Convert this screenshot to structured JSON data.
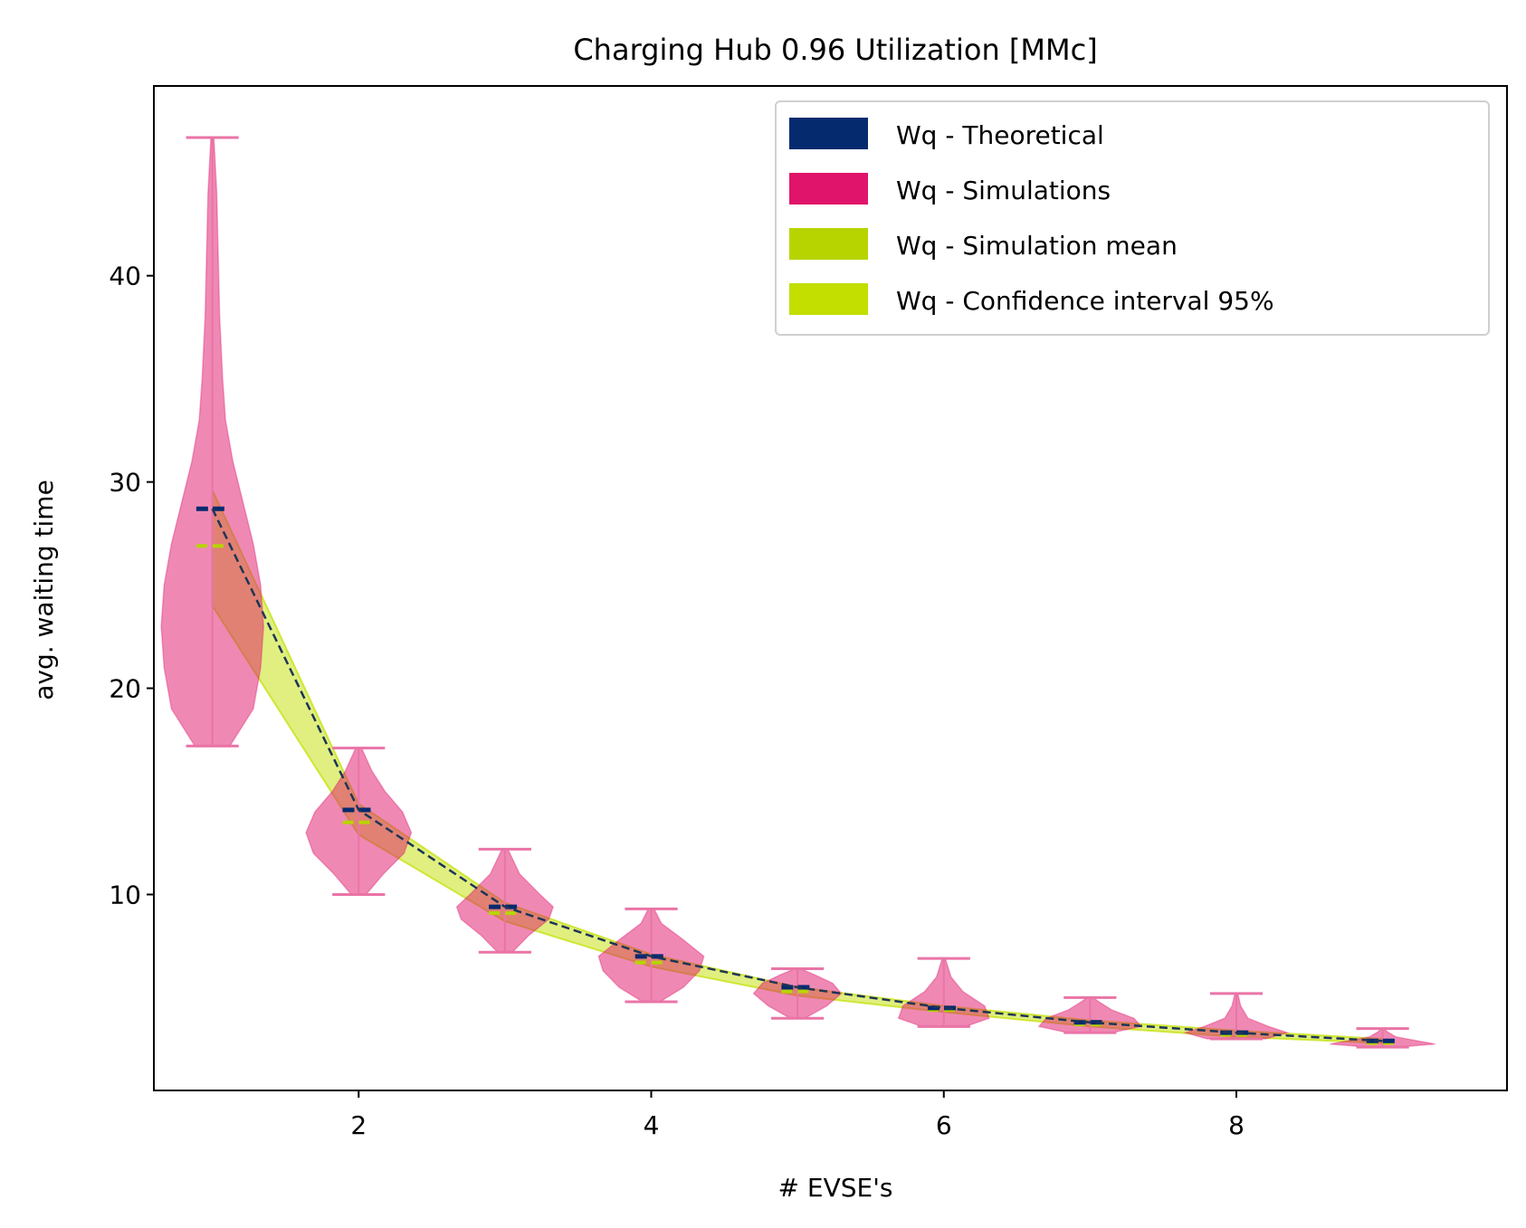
{
  "chart_data": {
    "type": "violin",
    "title": "Charging Hub 0.96 Utilization [MMc]",
    "xlabel": "# EVSE's",
    "ylabel": "avg. waiting time",
    "xlim": [
      0.6,
      9.85
    ],
    "ylim": [
      0.5,
      49.2
    ],
    "x_ticks": [
      2,
      4,
      6,
      8
    ],
    "y_ticks": [
      10,
      20,
      30,
      40
    ],
    "grid": false,
    "legend_position": "top-right",
    "legend": [
      {
        "label": "Wq - Theoretical",
        "color": "#062a6e"
      },
      {
        "label": "Wq - Simulations",
        "color": "#e0146a"
      },
      {
        "label": "Wq - Simulation mean",
        "color": "#b8d400"
      },
      {
        "label": "Wq - Confidence interval 95%",
        "color": "#c2df00"
      }
    ],
    "x": [
      1,
      2,
      3,
      4,
      5,
      6,
      7,
      8,
      9
    ],
    "theoretical": [
      28.7,
      14.1,
      9.4,
      7.0,
      5.5,
      4.5,
      3.8,
      3.3,
      2.9
    ],
    "simulation_mean": [
      26.9,
      13.5,
      9.1,
      6.7,
      5.3,
      4.4,
      3.7,
      3.2,
      2.8
    ],
    "confidence_interval_95": {
      "lower": [
        24.0,
        12.9,
        8.7,
        6.5,
        5.1,
        4.3,
        3.6,
        3.1,
        2.8
      ],
      "upper": [
        29.6,
        14.4,
        9.6,
        7.1,
        5.5,
        4.6,
        3.9,
        3.4,
        3.0
      ]
    },
    "simulations": {
      "min": [
        17.2,
        10.0,
        7.2,
        4.8,
        4.0,
        3.6,
        3.3,
        3.0,
        2.6
      ],
      "max": [
        46.7,
        17.1,
        12.2,
        9.3,
        6.4,
        6.9,
        5.0,
        5.2,
        3.5
      ],
      "profiles": [
        {
          "y": [
            17.2,
            19,
            21,
            23,
            25,
            27,
            29,
            31,
            33,
            35,
            38,
            41,
            44,
            46.7
          ],
          "width": [
            0.12,
            0.28,
            0.33,
            0.35,
            0.33,
            0.28,
            0.21,
            0.14,
            0.09,
            0.07,
            0.05,
            0.04,
            0.03,
            0.01
          ]
        },
        {
          "y": [
            10.0,
            11,
            12,
            13,
            14,
            15,
            16,
            17.1
          ],
          "width": [
            0.05,
            0.17,
            0.31,
            0.36,
            0.3,
            0.18,
            0.09,
            0.02
          ]
        },
        {
          "y": [
            7.2,
            8,
            8.8,
            9.4,
            10,
            11,
            12.2
          ],
          "width": [
            0.05,
            0.16,
            0.3,
            0.33,
            0.24,
            0.1,
            0.02
          ]
        },
        {
          "y": [
            4.8,
            5.5,
            6.3,
            7.0,
            7.8,
            8.6,
            9.3
          ],
          "width": [
            0.06,
            0.22,
            0.33,
            0.36,
            0.22,
            0.07,
            0.02
          ]
        },
        {
          "y": [
            4.0,
            4.6,
            5.2,
            5.7,
            6.1,
            6.4
          ],
          "width": [
            0.05,
            0.2,
            0.3,
            0.24,
            0.12,
            0.02
          ]
        },
        {
          "y": [
            3.6,
            4.0,
            4.6,
            5.3,
            6.0,
            6.9
          ],
          "width": [
            0.15,
            0.31,
            0.28,
            0.13,
            0.05,
            0.01
          ]
        },
        {
          "y": [
            3.3,
            3.6,
            4.0,
            4.4,
            4.8,
            5.0
          ],
          "width": [
            0.15,
            0.35,
            0.3,
            0.15,
            0.06,
            0.02
          ]
        },
        {
          "y": [
            3.0,
            3.3,
            3.6,
            4.0,
            4.6,
            5.2
          ],
          "width": [
            0.2,
            0.35,
            0.22,
            0.08,
            0.03,
            0.01
          ]
        },
        {
          "y": [
            2.6,
            2.75,
            2.9,
            3.1,
            3.35,
            3.5
          ],
          "width": [
            0.1,
            0.36,
            0.24,
            0.09,
            0.03,
            0.01
          ]
        }
      ]
    }
  }
}
